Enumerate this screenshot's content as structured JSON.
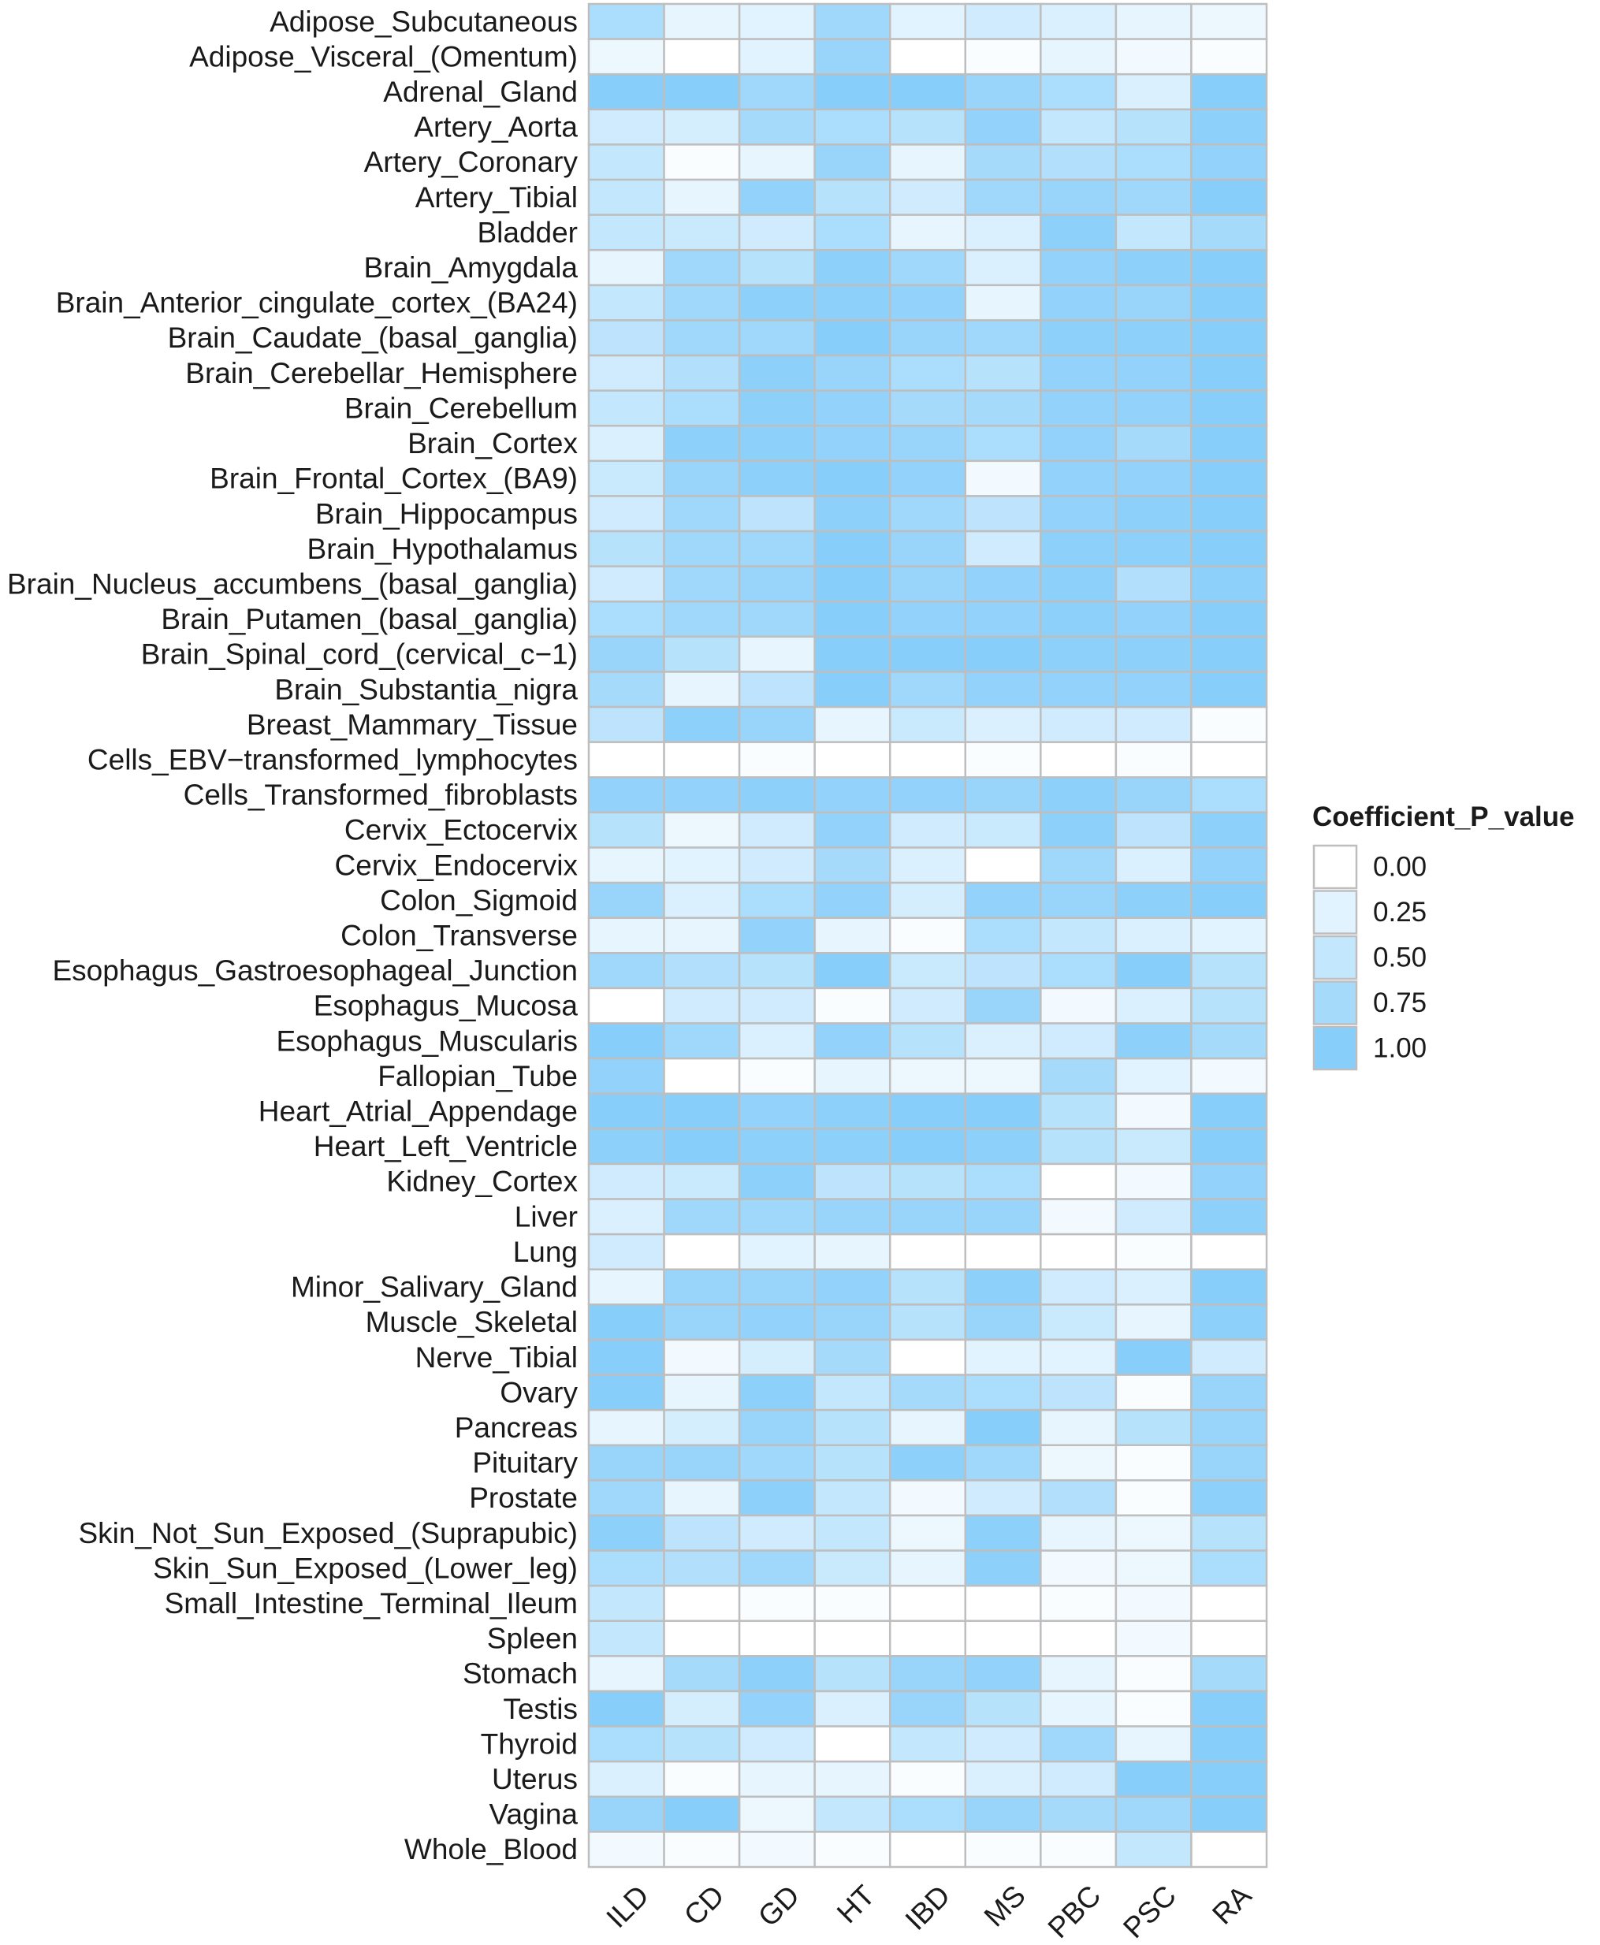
{
  "chart_data": {
    "type": "heatmap",
    "title": "",
    "xlabel": "",
    "ylabel": "",
    "columns": [
      "ILD",
      "CD",
      "GD",
      "HT",
      "IBD",
      "MS",
      "PBC",
      "PSC",
      "RA"
    ],
    "rows": [
      "Adipose_Subcutaneous",
      "Adipose_Visceral_(Omentum)",
      "Adrenal_Gland",
      "Artery_Aorta",
      "Artery_Coronary",
      "Artery_Tibial",
      "Bladder",
      "Brain_Amygdala",
      "Brain_Anterior_cingulate_cortex_(BA24)",
      "Brain_Caudate_(basal_ganglia)",
      "Brain_Cerebellar_Hemisphere",
      "Brain_Cerebellum",
      "Brain_Cortex",
      "Brain_Frontal_Cortex_(BA9)",
      "Brain_Hippocampus",
      "Brain_Hypothalamus",
      "Brain_Nucleus_accumbens_(basal_ganglia)",
      "Brain_Putamen_(basal_ganglia)",
      "Brain_Spinal_cord_(cervical_c−1)",
      "Brain_Substantia_nigra",
      "Breast_Mammary_Tissue",
      "Cells_EBV−transformed_lymphocytes",
      "Cells_Transformed_fibroblasts",
      "Cervix_Ectocervix",
      "Cervix_Endocervix",
      "Colon_Sigmoid",
      "Colon_Transverse",
      "Esophagus_Gastroesophageal_Junction",
      "Esophagus_Mucosa",
      "Esophagus_Muscularis",
      "Fallopian_Tube",
      "Heart_Atrial_Appendage",
      "Heart_Left_Ventricle",
      "Kidney_Cortex",
      "Liver",
      "Lung",
      "Minor_Salivary_Gland",
      "Muscle_Skeletal",
      "Nerve_Tibial",
      "Ovary",
      "Pancreas",
      "Pituitary",
      "Prostate",
      "Skin_Not_Sun_Exposed_(Suprapubic)",
      "Skin_Sun_Exposed_(Lower_leg)",
      "Small_Intestine_Terminal_Ileum",
      "Spleen",
      "Stomach",
      "Testis",
      "Thyroid",
      "Uterus",
      "Vagina",
      "Whole_Blood"
    ],
    "values": [
      [
        0.7,
        0.2,
        0.25,
        0.8,
        0.25,
        0.4,
        0.3,
        0.2,
        0.15
      ],
      [
        0.15,
        0.0,
        0.25,
        0.85,
        0.0,
        0.05,
        0.2,
        0.1,
        0.05
      ],
      [
        1.0,
        1.0,
        0.8,
        1.0,
        1.0,
        0.85,
        0.7,
        0.3,
        1.0
      ],
      [
        0.4,
        0.35,
        0.75,
        0.7,
        0.6,
        0.9,
        0.5,
        0.6,
        0.95
      ],
      [
        0.5,
        0.05,
        0.2,
        0.85,
        0.2,
        0.75,
        0.65,
        0.7,
        0.9
      ],
      [
        0.5,
        0.2,
        0.9,
        0.6,
        0.4,
        0.8,
        0.85,
        0.8,
        1.0
      ],
      [
        0.5,
        0.45,
        0.4,
        0.7,
        0.2,
        0.3,
        0.95,
        0.5,
        0.75
      ],
      [
        0.2,
        0.8,
        0.6,
        0.95,
        0.8,
        0.3,
        0.9,
        0.95,
        1.0
      ],
      [
        0.5,
        0.8,
        0.95,
        0.95,
        0.9,
        0.2,
        0.9,
        0.85,
        1.0
      ],
      [
        0.55,
        0.8,
        0.8,
        1.0,
        0.85,
        0.8,
        0.95,
        0.95,
        1.0
      ],
      [
        0.4,
        0.65,
        0.95,
        0.85,
        0.7,
        0.6,
        0.9,
        0.9,
        1.0
      ],
      [
        0.5,
        0.7,
        0.95,
        0.9,
        0.75,
        0.75,
        0.9,
        0.9,
        1.0
      ],
      [
        0.3,
        0.95,
        0.95,
        0.9,
        0.85,
        0.7,
        0.9,
        0.75,
        1.0
      ],
      [
        0.45,
        0.85,
        0.95,
        1.0,
        0.9,
        0.1,
        0.9,
        0.9,
        1.0
      ],
      [
        0.4,
        0.8,
        0.55,
        0.95,
        0.8,
        0.55,
        0.9,
        0.95,
        1.0
      ],
      [
        0.6,
        0.8,
        0.8,
        1.0,
        0.85,
        0.4,
        0.95,
        0.95,
        1.0
      ],
      [
        0.4,
        0.8,
        0.85,
        1.0,
        0.85,
        0.9,
        0.95,
        0.65,
        0.95
      ],
      [
        0.7,
        0.8,
        0.8,
        1.0,
        0.9,
        0.9,
        0.95,
        0.9,
        1.0
      ],
      [
        0.85,
        0.6,
        0.2,
        1.0,
        1.0,
        1.0,
        0.95,
        0.95,
        1.0
      ],
      [
        0.75,
        0.2,
        0.55,
        1.0,
        0.8,
        0.9,
        0.9,
        0.9,
        1.0
      ],
      [
        0.55,
        0.95,
        0.85,
        0.2,
        0.45,
        0.3,
        0.4,
        0.4,
        0.05
      ],
      [
        0.0,
        0.0,
        0.05,
        0.0,
        0.0,
        0.05,
        0.0,
        0.05,
        0.0
      ],
      [
        0.9,
        0.9,
        0.95,
        0.9,
        0.9,
        0.85,
        0.95,
        0.85,
        0.7
      ],
      [
        0.6,
        0.15,
        0.4,
        0.9,
        0.4,
        0.45,
        0.95,
        0.55,
        0.95
      ],
      [
        0.2,
        0.25,
        0.4,
        0.75,
        0.3,
        0.0,
        0.8,
        0.3,
        0.9
      ],
      [
        0.85,
        0.3,
        0.7,
        0.9,
        0.35,
        0.9,
        0.85,
        0.95,
        1.0
      ],
      [
        0.2,
        0.2,
        0.9,
        0.2,
        0.05,
        0.7,
        0.5,
        0.3,
        0.25
      ],
      [
        0.8,
        0.65,
        0.6,
        1.0,
        0.45,
        0.55,
        0.7,
        1.0,
        0.6
      ],
      [
        0.0,
        0.4,
        0.4,
        0.05,
        0.4,
        0.85,
        0.1,
        0.3,
        0.6
      ],
      [
        1.0,
        0.8,
        0.3,
        0.9,
        0.6,
        0.3,
        0.4,
        0.95,
        0.75
      ],
      [
        0.9,
        0.0,
        0.05,
        0.2,
        0.15,
        0.15,
        0.75,
        0.25,
        0.1
      ],
      [
        1.0,
        1.0,
        0.9,
        0.95,
        1.0,
        1.0,
        0.6,
        0.1,
        1.0
      ],
      [
        0.95,
        1.0,
        0.95,
        0.95,
        1.0,
        0.95,
        0.6,
        0.45,
        1.0
      ],
      [
        0.4,
        0.45,
        0.95,
        0.55,
        0.6,
        0.7,
        0.0,
        0.1,
        0.9
      ],
      [
        0.3,
        0.8,
        0.8,
        0.85,
        0.85,
        0.85,
        0.1,
        0.4,
        0.95
      ],
      [
        0.4,
        0.0,
        0.25,
        0.2,
        0.0,
        0.0,
        0.0,
        0.05,
        0.0
      ],
      [
        0.2,
        0.85,
        0.85,
        0.9,
        0.6,
        0.95,
        0.4,
        0.3,
        1.0
      ],
      [
        1.0,
        0.85,
        0.9,
        0.85,
        0.6,
        0.85,
        0.45,
        0.2,
        0.95
      ],
      [
        1.0,
        0.1,
        0.35,
        0.75,
        0.0,
        0.25,
        0.25,
        1.0,
        0.4
      ],
      [
        1.0,
        0.2,
        0.95,
        0.5,
        0.75,
        0.7,
        0.55,
        0.05,
        0.85
      ],
      [
        0.2,
        0.35,
        0.85,
        0.6,
        0.2,
        1.0,
        0.2,
        0.6,
        0.85
      ],
      [
        0.85,
        0.85,
        0.8,
        0.6,
        0.95,
        0.8,
        0.15,
        0.05,
        0.85
      ],
      [
        0.8,
        0.2,
        0.95,
        0.5,
        0.1,
        0.4,
        0.65,
        0.05,
        0.95
      ],
      [
        0.95,
        0.55,
        0.4,
        0.5,
        0.15,
        0.95,
        0.2,
        0.15,
        0.6
      ],
      [
        0.7,
        0.65,
        0.8,
        0.45,
        0.2,
        0.95,
        0.1,
        0.15,
        0.7
      ],
      [
        0.5,
        0.0,
        0.05,
        0.05,
        0.0,
        0.0,
        0.05,
        0.1,
        0.0
      ],
      [
        0.5,
        0.0,
        0.0,
        0.0,
        0.0,
        0.0,
        0.0,
        0.1,
        0.0
      ],
      [
        0.2,
        0.75,
        0.95,
        0.6,
        0.85,
        0.9,
        0.2,
        0.05,
        0.75
      ],
      [
        1.0,
        0.35,
        0.9,
        0.3,
        0.85,
        0.6,
        0.2,
        0.05,
        1.0
      ],
      [
        0.7,
        0.6,
        0.4,
        0.0,
        0.5,
        0.4,
        0.8,
        0.2,
        1.0
      ],
      [
        0.3,
        0.05,
        0.2,
        0.2,
        0.05,
        0.3,
        0.4,
        1.0,
        1.0
      ],
      [
        0.85,
        1.0,
        0.15,
        0.5,
        0.7,
        0.85,
        0.75,
        0.8,
        1.0
      ],
      [
        0.1,
        0.05,
        0.1,
        0.05,
        0.0,
        0.05,
        0.05,
        0.5,
        0.0
      ]
    ],
    "scale": {
      "low_color": "#FFFFFF",
      "high_color": "#87CEFA",
      "cell_border_color": "#BEBEBE",
      "range": [
        0,
        1
      ]
    },
    "legend": {
      "title": "Coefficient_P_value",
      "position": "right",
      "breaks": [
        0.0,
        0.25,
        0.5,
        0.75,
        1.0
      ],
      "labels": [
        "0.00",
        "0.25",
        "0.50",
        "0.75",
        "1.00"
      ]
    }
  }
}
